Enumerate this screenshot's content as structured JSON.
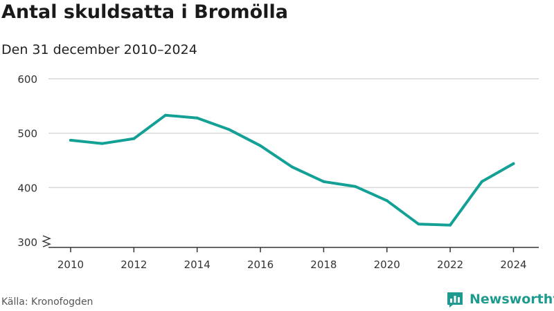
{
  "header": {
    "title": "Antal skuldsatta i Bromölla",
    "subtitle": "Den 31 december 2010–2024"
  },
  "footer": {
    "source": "Källa: Kronofogden",
    "brand": "Newsworthy",
    "logo_icon": "bar-chart-logo-icon"
  },
  "colors": {
    "line": "#13a196",
    "brand": "#1f9a8f",
    "grid": "#d9d9d9",
    "axis": "#333333"
  },
  "chart_data": {
    "type": "line",
    "x": [
      2010,
      2011,
      2012,
      2013,
      2014,
      2015,
      2016,
      2017,
      2018,
      2019,
      2020,
      2021,
      2022,
      2023,
      2024
    ],
    "series": [
      {
        "values": [
          487,
          481,
          490,
          533,
          528,
          507,
          477,
          438,
          411,
          402,
          376,
          333,
          331,
          411,
          444
        ]
      }
    ],
    "xticks": [
      2010,
      2012,
      2014,
      2016,
      2018,
      2020,
      2022,
      2024
    ],
    "xtick_labels": [
      "2010",
      "2012",
      "2014",
      "2016",
      "2018",
      "2020",
      "2022",
      "2024"
    ],
    "yticks": [
      300,
      400,
      500,
      600
    ],
    "ytick_labels": [
      "300",
      "400",
      "500",
      "600"
    ],
    "xlim": [
      2009.3,
      2024.8
    ],
    "ylim": [
      290,
      600
    ],
    "y_axis_break": true,
    "grid": true,
    "title": "Antal skuldsatta i Bromölla",
    "xlabel": "",
    "ylabel": ""
  }
}
